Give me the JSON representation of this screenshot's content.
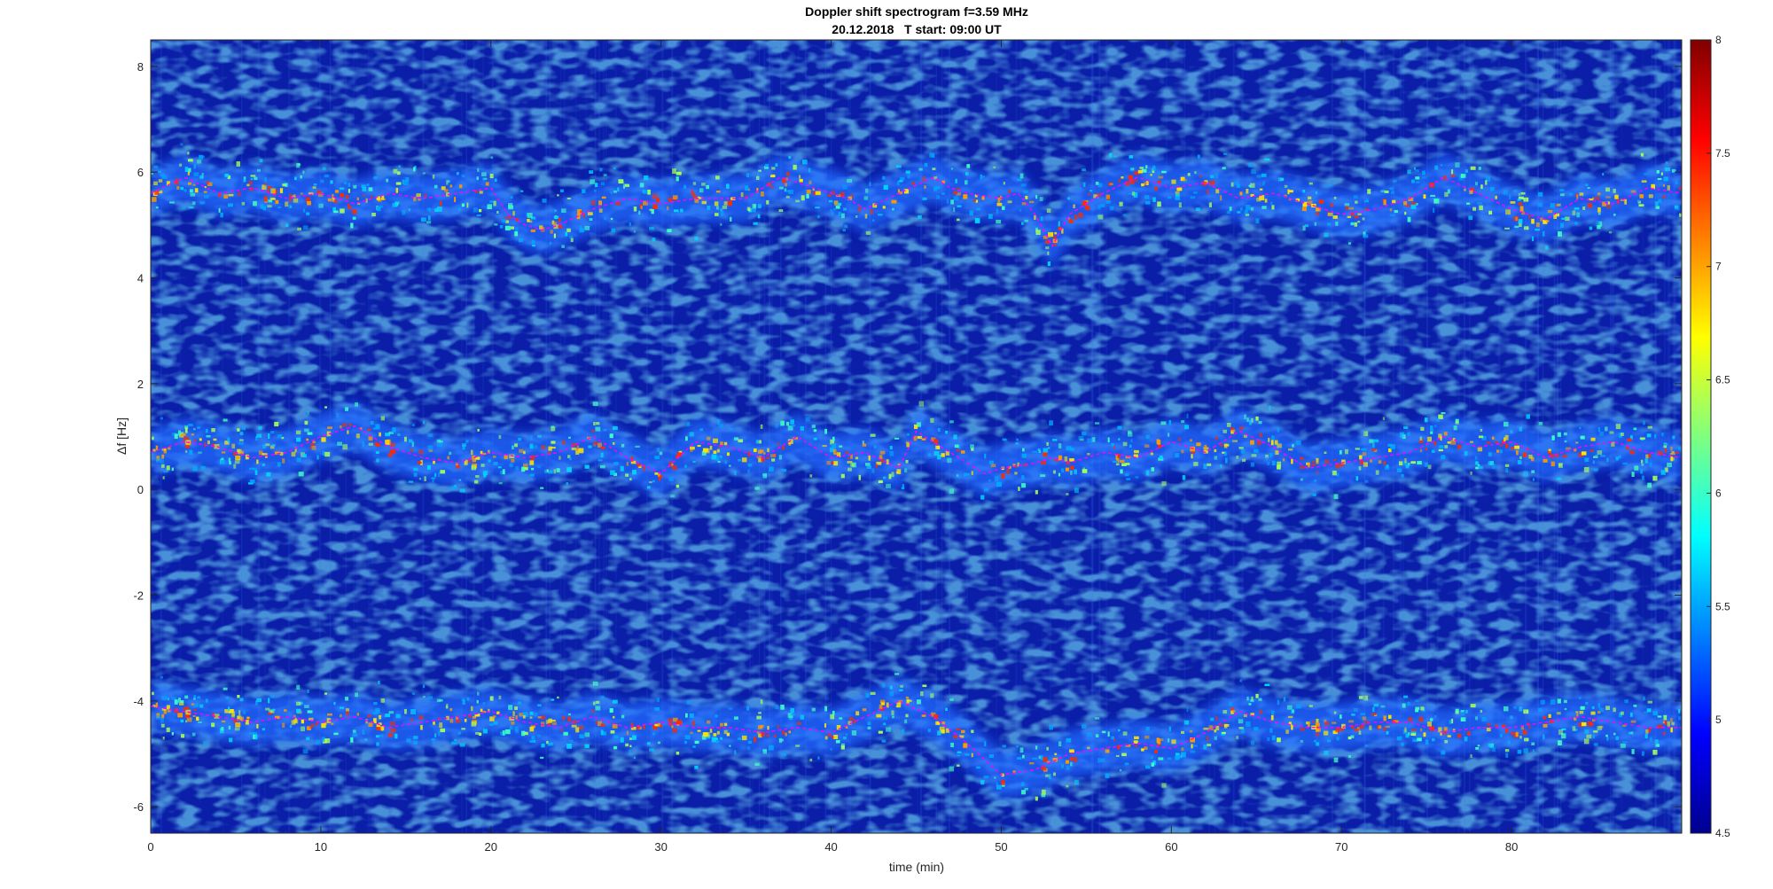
{
  "chart_data": {
    "type": "heatmap",
    "title": "Doppler shift spectrogram f=3.59 MHz",
    "subtitle": "20.12.2018   T start: 09:00 UT",
    "xlabel": "time (min)",
    "ylabel": "Δf [Hz]",
    "xlim": [
      0,
      90
    ],
    "ylim": [
      -6.5,
      8.5
    ],
    "x_ticks": [
      0,
      10,
      20,
      30,
      40,
      50,
      60,
      70,
      80
    ],
    "x_tick_labels": [
      "0",
      "10",
      "20",
      "30",
      "40",
      "50",
      "60",
      "70",
      "80"
    ],
    "y_ticks": [
      -6,
      -4,
      -2,
      0,
      2,
      4,
      6,
      8
    ],
    "y_tick_labels": [
      "-6",
      "-4",
      "-2",
      "0",
      "2",
      "4",
      "6",
      "8"
    ],
    "colormap": "jet",
    "color_range": [
      4.5,
      8
    ],
    "colorbar_ticks": [
      4.5,
      5,
      5.5,
      6,
      6.5,
      7,
      7.5,
      8
    ],
    "colorbar_tick_labels": [
      "4.5",
      "5",
      "5.5",
      "6",
      "6.5",
      "7",
      "7.5",
      "8"
    ],
    "background_level": 4.6,
    "traces": [
      {
        "color": "#ff00ff",
        "style": "dashed",
        "x": [
          0,
          2,
          4,
          6,
          8,
          10,
          12,
          14,
          16,
          18,
          20,
          21,
          22,
          23,
          24,
          26,
          28,
          30,
          32,
          34,
          35,
          37,
          39,
          41,
          42,
          44,
          46,
          47,
          48,
          50,
          51,
          52,
          53,
          54,
          56,
          58,
          60,
          62,
          64,
          66,
          68,
          70,
          72,
          74,
          76,
          78,
          80,
          82,
          84,
          86,
          88,
          90
        ],
        "y": [
          5.6,
          5.9,
          5.6,
          5.7,
          5.5,
          5.6,
          5.4,
          5.6,
          5.5,
          5.6,
          5.7,
          5.2,
          5.0,
          4.9,
          5.0,
          5.3,
          5.5,
          5.4,
          5.5,
          5.5,
          5.5,
          5.9,
          5.7,
          5.5,
          5.3,
          5.6,
          5.9,
          5.7,
          5.6,
          5.5,
          5.6,
          5.2,
          4.6,
          5.2,
          5.6,
          5.9,
          5.7,
          5.8,
          5.5,
          5.6,
          5.4,
          5.2,
          5.3,
          5.5,
          5.9,
          5.6,
          5.3,
          5.1,
          5.5,
          5.4,
          5.7,
          5.6
        ]
      },
      {
        "color": "#ff00ff",
        "style": "dashed",
        "x": [
          0,
          2,
          4,
          6,
          8,
          10,
          12,
          14,
          16,
          18,
          20,
          22,
          24,
          26,
          28,
          30,
          32,
          34,
          36,
          38,
          40,
          42,
          44,
          45,
          46,
          48,
          49,
          50,
          52,
          53,
          54,
          56,
          58,
          60,
          62,
          64,
          66,
          68,
          70,
          72,
          74,
          76,
          78,
          80,
          82,
          84,
          86,
          88,
          90
        ],
        "y": [
          0.7,
          0.9,
          0.8,
          0.6,
          0.7,
          1.0,
          1.2,
          0.8,
          0.6,
          0.5,
          0.7,
          0.6,
          0.7,
          1.0,
          0.6,
          0.3,
          0.9,
          0.8,
          0.6,
          1.0,
          0.6,
          0.7,
          0.4,
          1.1,
          0.9,
          0.5,
          0.3,
          0.4,
          0.5,
          0.6,
          0.5,
          0.7,
          0.6,
          0.9,
          0.7,
          1.1,
          0.8,
          0.4,
          0.5,
          0.6,
          0.7,
          1.0,
          0.8,
          0.9,
          0.6,
          0.8,
          0.9,
          0.7,
          0.6
        ]
      },
      {
        "color": "#ff00ff",
        "style": "dashed",
        "x": [
          0,
          2,
          4,
          6,
          8,
          10,
          12,
          14,
          16,
          18,
          20,
          22,
          24,
          26,
          28,
          30,
          32,
          34,
          36,
          38,
          40,
          42,
          44,
          46,
          48,
          50,
          52,
          54,
          56,
          58,
          60,
          62,
          64,
          66,
          68,
          70,
          72,
          74,
          76,
          78,
          80,
          82,
          84,
          86,
          88,
          90
        ],
        "y": [
          -4.1,
          -4.2,
          -4.3,
          -4.4,
          -4.3,
          -4.4,
          -4.3,
          -4.5,
          -4.4,
          -4.3,
          -4.2,
          -4.4,
          -4.5,
          -4.3,
          -4.5,
          -4.4,
          -4.5,
          -4.5,
          -4.6,
          -4.5,
          -4.6,
          -4.3,
          -4.0,
          -4.3,
          -4.8,
          -5.4,
          -5.3,
          -5.0,
          -4.9,
          -4.8,
          -4.9,
          -4.6,
          -4.2,
          -4.4,
          -4.5,
          -4.5,
          -4.4,
          -4.4,
          -4.6,
          -4.5,
          -4.5,
          -4.4,
          -4.3,
          -4.4,
          -4.5,
          -4.5
        ]
      }
    ]
  }
}
